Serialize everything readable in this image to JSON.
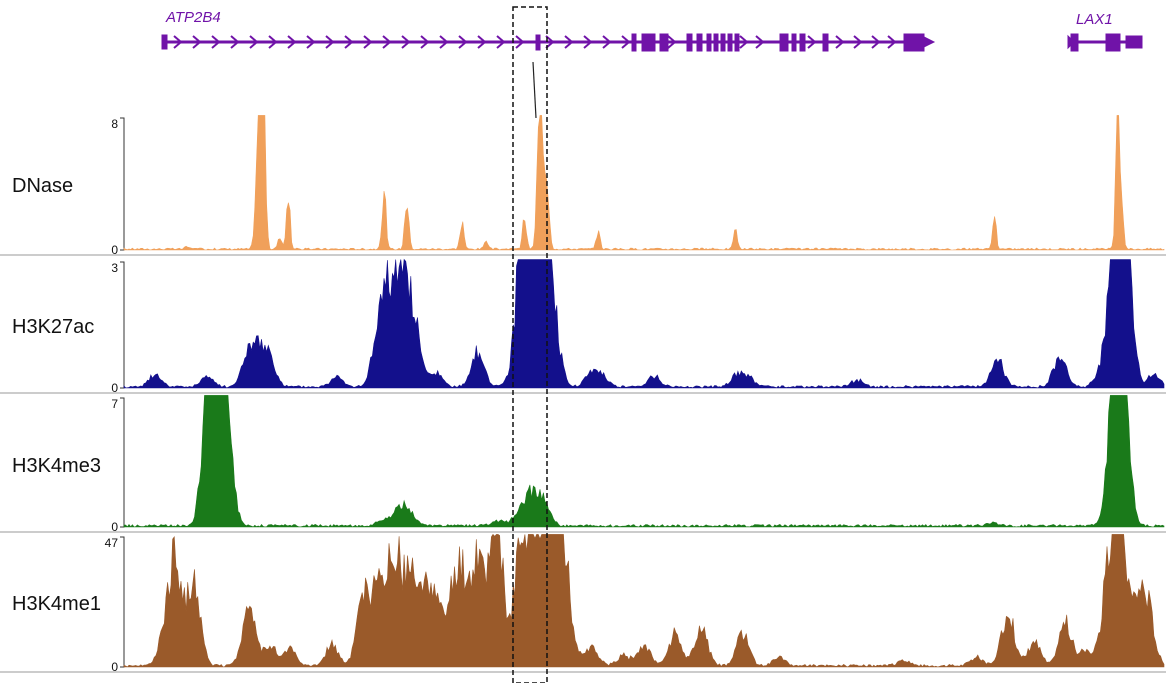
{
  "genes": [
    {
      "name": "ATP2B4",
      "color": "#7013a8"
    },
    {
      "name": "LAX1",
      "color": "#7013a8"
    }
  ],
  "tracks": [
    {
      "name": "DNase",
      "ymax": "8",
      "ymin": "0",
      "color": "#f0a05a",
      "peaks": [
        [
          0.06,
          0.14
        ],
        [
          0.065,
          0.08
        ],
        [
          0.125,
          0.4
        ],
        [
          0.13,
          1.3
        ],
        [
          0.15,
          0.75
        ],
        [
          0.13,
          5.3
        ],
        [
          0.134,
          6.5
        ],
        [
          0.128,
          3.5
        ],
        [
          0.135,
          4.3
        ],
        [
          0.158,
          3.2
        ],
        [
          0.25,
          3.8
        ],
        [
          0.272,
          3.5
        ],
        [
          0.325,
          1.6
        ],
        [
          0.348,
          0.5
        ],
        [
          0.405,
          2.5
        ],
        [
          0.385,
          2.0
        ],
        [
          0.398,
          4.8
        ],
        [
          0.401,
          8.2
        ],
        [
          0.408,
          2.5
        ],
        [
          0.456,
          1.1
        ],
        [
          0.588,
          1.2
        ],
        [
          0.837,
          1.8
        ],
        [
          0.955,
          5.8
        ],
        [
          0.957,
          3.5
        ],
        [
          0.96,
          1.5
        ]
      ]
    },
    {
      "name": "H3K27ac",
      "ymax": "3",
      "ymin": "0",
      "color": "#13108c",
      "peaks": [
        [
          0.03,
          0.3
        ],
        [
          0.12,
          0.35
        ],
        [
          0.08,
          0.25
        ],
        [
          0.205,
          0.25
        ],
        [
          0.25,
          0.55
        ],
        [
          0.275,
          0.7
        ],
        [
          0.28,
          1.0
        ],
        [
          0.265,
          0.8
        ],
        [
          0.255,
          0.9
        ],
        [
          0.245,
          1.3
        ],
        [
          0.26,
          1.2
        ],
        [
          0.27,
          1.1
        ],
        [
          0.3,
          0.35
        ],
        [
          0.34,
          0.85
        ],
        [
          0.395,
          1.1
        ],
        [
          0.38,
          1.5
        ],
        [
          0.385,
          1.7
        ],
        [
          0.39,
          2.2
        ],
        [
          0.4,
          1.8
        ],
        [
          0.405,
          1.4
        ],
        [
          0.395,
          1.9
        ],
        [
          0.41,
          1.2
        ],
        [
          0.415,
          0.7
        ],
        [
          0.45,
          0.35
        ],
        [
          0.46,
          0.25
        ],
        [
          0.51,
          0.25
        ],
        [
          0.59,
          0.28
        ],
        [
          0.6,
          0.22
        ],
        [
          0.705,
          0.15
        ],
        [
          0.84,
          0.65
        ],
        [
          0.9,
          0.75
        ],
        [
          0.96,
          2.5
        ],
        [
          0.955,
          2.2
        ],
        [
          0.965,
          1.6
        ],
        [
          0.95,
          1.4
        ],
        [
          0.96,
          1.3
        ],
        [
          0.94,
          0.35
        ],
        [
          0.99,
          0.3
        ],
        [
          0.14,
          0.6
        ],
        [
          0.13,
          0.7
        ],
        [
          0.12,
          0.5
        ]
      ]
    },
    {
      "name": "H3K4me3",
      "ymax": "7",
      "ymin": "0",
      "color": "#1a7a1a",
      "peaks": [
        [
          0.085,
          5.4
        ],
        [
          0.094,
          4.9
        ],
        [
          0.1,
          3.0
        ],
        [
          0.08,
          4.5
        ],
        [
          0.265,
          0.9
        ],
        [
          0.275,
          0.6
        ],
        [
          0.25,
          0.3
        ],
        [
          0.36,
          0.3
        ],
        [
          0.38,
          0.6
        ],
        [
          0.39,
          1.5
        ],
        [
          0.4,
          1.0
        ],
        [
          0.405,
          0.7
        ],
        [
          0.835,
          0.15
        ],
        [
          0.955,
          7.0
        ],
        [
          0.958,
          5.5
        ],
        [
          0.962,
          3.0
        ],
        [
          0.95,
          2.0
        ]
      ]
    },
    {
      "name": "H3K4me1",
      "ymax": "47",
      "ymin": "0",
      "color": "#9a5a2a",
      "peaks": [
        [
          0.04,
          15
        ],
        [
          0.05,
          35
        ],
        [
          0.07,
          12
        ],
        [
          0.065,
          20
        ],
        [
          0.12,
          22
        ],
        [
          0.14,
          8
        ],
        [
          0.16,
          6
        ],
        [
          0.2,
          8
        ],
        [
          0.23,
          25
        ],
        [
          0.245,
          30
        ],
        [
          0.26,
          42
        ],
        [
          0.275,
          33
        ],
        [
          0.29,
          25
        ],
        [
          0.3,
          18
        ],
        [
          0.315,
          20
        ],
        [
          0.325,
          30
        ],
        [
          0.34,
          38
        ],
        [
          0.355,
          28
        ],
        [
          0.36,
          34
        ],
        [
          0.38,
          35
        ],
        [
          0.39,
          30
        ],
        [
          0.4,
          34
        ],
        [
          0.41,
          55
        ],
        [
          0.42,
          48
        ],
        [
          0.43,
          10
        ],
        [
          0.45,
          7
        ],
        [
          0.48,
          4
        ],
        [
          0.53,
          12
        ],
        [
          0.555,
          14
        ],
        [
          0.5,
          8
        ],
        [
          0.595,
          12
        ],
        [
          0.63,
          3
        ],
        [
          0.75,
          2
        ],
        [
          0.82,
          3
        ],
        [
          0.85,
          20
        ],
        [
          0.875,
          9
        ],
        [
          0.905,
          16
        ],
        [
          0.925,
          6
        ],
        [
          0.945,
          25
        ],
        [
          0.955,
          38
        ],
        [
          0.96,
          28
        ],
        [
          0.975,
          22
        ],
        [
          0.985,
          19
        ]
      ]
    }
  ]
}
